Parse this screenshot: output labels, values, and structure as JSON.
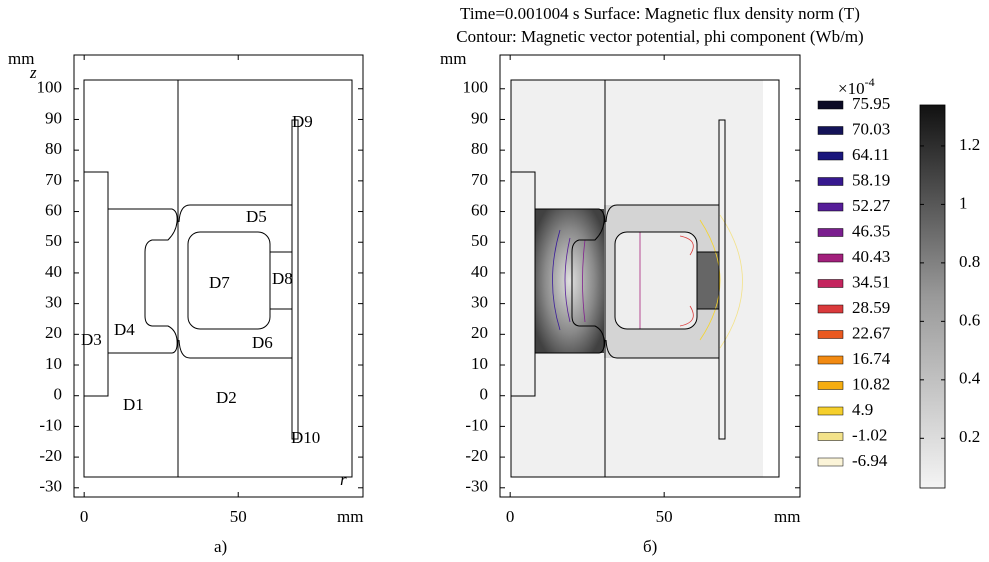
{
  "panel_a": {
    "caption": "а)",
    "y_unit": "mm",
    "x_unit": "mm",
    "y_symbol": "z",
    "x_symbol": "r",
    "xlim": [
      -3.3,
      90.5
    ],
    "ylim": [
      -33,
      111
    ],
    "xticks": [
      0,
      50
    ],
    "yticks": [
      100,
      90,
      80,
      70,
      60,
      50,
      40,
      30,
      20,
      10,
      0,
      -10,
      -20,
      -30
    ],
    "domains": [
      "D1",
      "D2",
      "D3",
      "D4",
      "D5",
      "D6",
      "D7",
      "D8",
      "D9",
      "D10"
    ]
  },
  "panel_b": {
    "caption": "б)",
    "y_unit": "mm",
    "x_unit": "mm",
    "title_line1": "Time=0.001004 s   Surface: Magnetic flux density norm (T)",
    "title_line2": "Contour: Magnetic vector potential, phi component (Wb/m)",
    "xlim": [
      -3.3,
      94.1
    ],
    "ylim": [
      -33,
      111
    ],
    "xticks": [
      0,
      50
    ],
    "yticks": [
      100,
      90,
      80,
      70,
      60,
      50,
      40,
      30,
      20,
      10,
      0,
      -10,
      -20,
      -30
    ],
    "contour_legend": {
      "multiplier": "×10",
      "exponent": "-4",
      "levels": [
        75.95,
        70.03,
        64.11,
        58.19,
        52.27,
        46.35,
        40.43,
        34.51,
        28.59,
        22.67,
        16.74,
        10.82,
        4.9,
        -1.02,
        -6.94
      ],
      "colors": [
        "#0b0a24",
        "#141358",
        "#1a167c",
        "#37198f",
        "#561d98",
        "#7b1f8f",
        "#a2207c",
        "#c4245e",
        "#da3a3c",
        "#e9581f",
        "#f28a12",
        "#f6ad10",
        "#f5cf2c",
        "#f3e28a",
        "#fbf4d8"
      ]
    },
    "colorbar": {
      "range": [
        0.03,
        1.34
      ],
      "ticks": [
        1.2,
        1,
        0.8,
        0.6,
        0.4,
        0.2
      ]
    }
  }
}
